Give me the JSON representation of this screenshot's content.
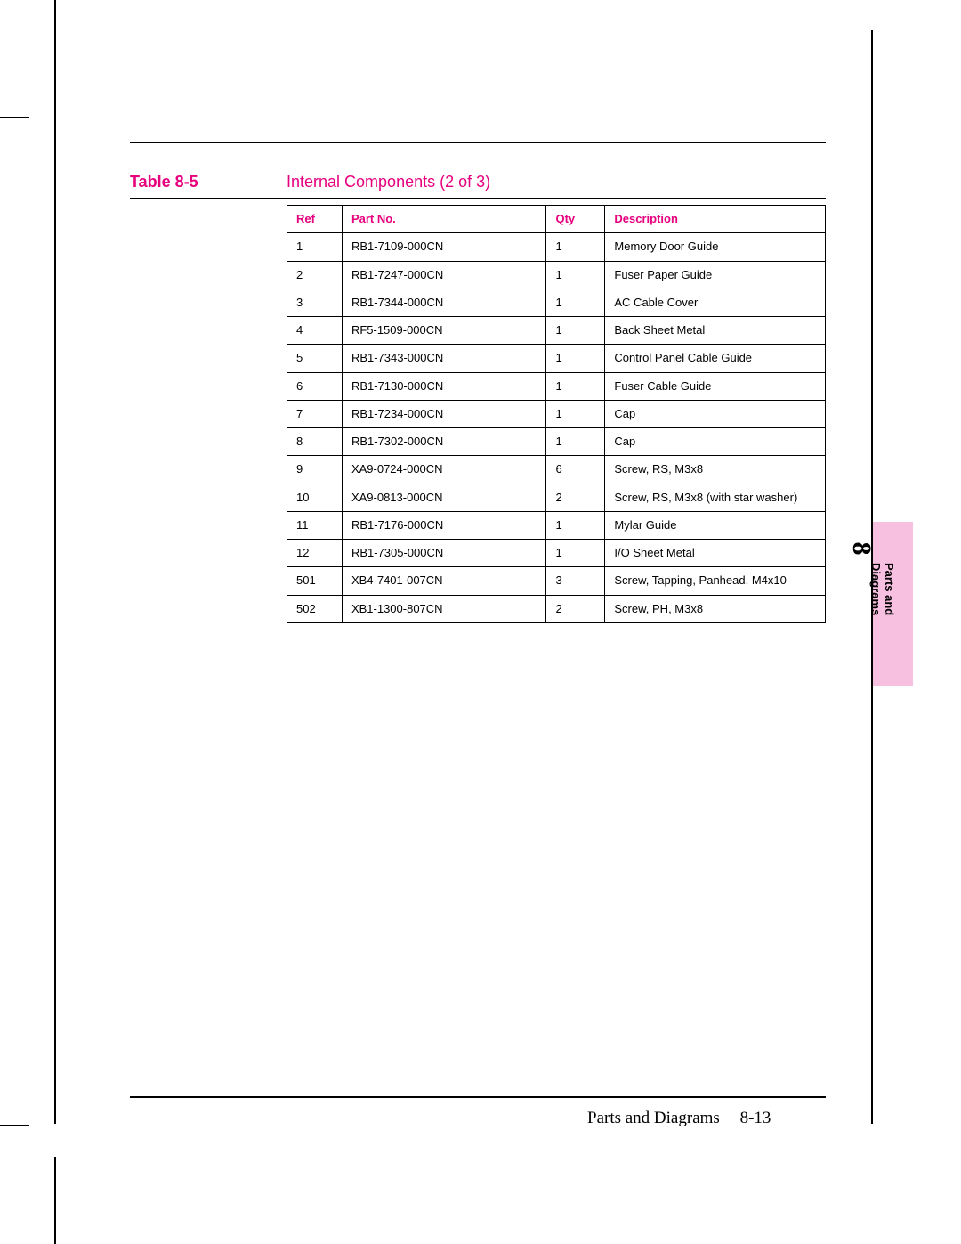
{
  "caption": {
    "label": "Table 8-5",
    "title": "Internal Components (2 of 3)"
  },
  "table": {
    "columns": [
      "Ref",
      "Part No.",
      "Qty",
      "Description"
    ],
    "rows": [
      [
        "1",
        "RB1-7109-000CN",
        "1",
        "Memory Door Guide"
      ],
      [
        "2",
        "RB1-7247-000CN",
        "1",
        "Fuser Paper Guide"
      ],
      [
        "3",
        "RB1-7344-000CN",
        "1",
        "AC Cable Cover"
      ],
      [
        "4",
        "RF5-1509-000CN",
        "1",
        "Back Sheet Metal"
      ],
      [
        "5",
        "RB1-7343-000CN",
        "1",
        "Control Panel Cable Guide"
      ],
      [
        "6",
        "RB1-7130-000CN",
        "1",
        "Fuser Cable Guide"
      ],
      [
        "7",
        "RB1-7234-000CN",
        "1",
        "Cap"
      ],
      [
        "8",
        "RB1-7302-000CN",
        "1",
        "Cap"
      ],
      [
        "9",
        "XA9-0724-000CN",
        "6",
        "Screw, RS, M3x8"
      ],
      [
        "10",
        "XA9-0813-000CN",
        "2",
        "Screw, RS, M3x8 (with star washer)"
      ],
      [
        "11",
        "RB1-7176-000CN",
        "1",
        "Mylar Guide"
      ],
      [
        "12",
        "RB1-7305-000CN",
        "1",
        "I/O Sheet Metal"
      ],
      [
        "501",
        "XB4-7401-007CN",
        "3",
        "Screw, Tapping, Panhead, M4x10"
      ],
      [
        "502",
        "XB1-1300-807CN",
        "2",
        "Screw, PH, M3x8"
      ]
    ],
    "header_color": "#e6007e",
    "border_color": "#000000",
    "font_size_header": 13,
    "font_size_body": 13
  },
  "side_tab": {
    "number": "8",
    "line1": "Parts and",
    "line2": "Diagrams",
    "bg_color": "#f7c0e0"
  },
  "footer": {
    "section": "Parts and Diagrams",
    "page": "8-13"
  },
  "colors": {
    "accent": "#e6007e",
    "rule": "#000000",
    "background": "#ffffff"
  }
}
